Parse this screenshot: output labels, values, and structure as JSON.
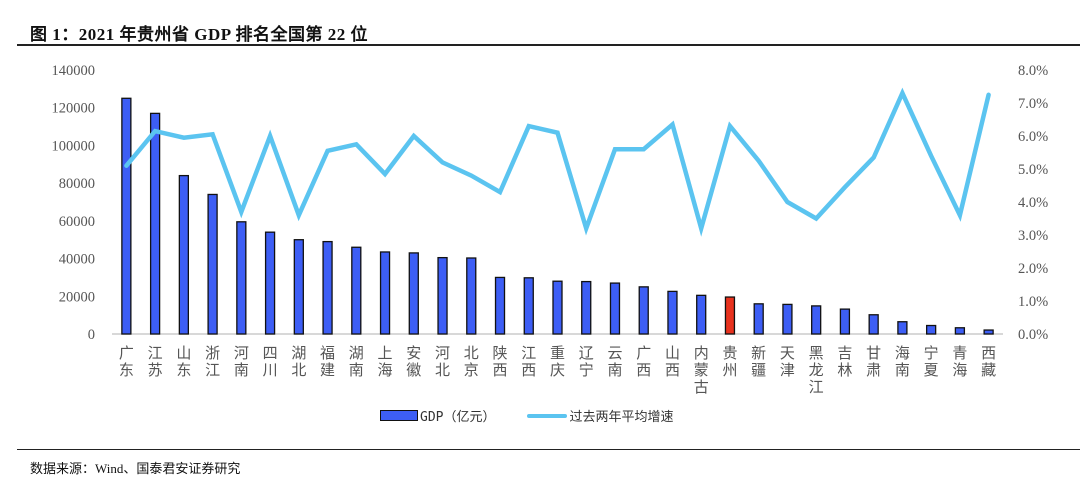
{
  "header": {
    "title": "图 1：2021 年贵州省 GDP 排名全国第 22 位"
  },
  "footer": {
    "source": "数据来源：Wind、国泰君安证券研究"
  },
  "legend": {
    "bar_label": "GDP（亿元）",
    "line_label": "过去两年平均增速"
  },
  "colors": {
    "bar": "#3d5ef5",
    "bar_highlight": "#e8321e",
    "bar_border": "#111111",
    "line": "#5bc4f0",
    "axis_text": "#555555",
    "baseline": "#cccccc"
  },
  "chart_data": {
    "type": "bar+line",
    "title": "图 1：2021 年贵州省 GDP 排名全国第 22 位",
    "xlabel": "",
    "ylabel": "",
    "y2label": "",
    "ylim": [
      0,
      140000
    ],
    "y2lim": [
      0,
      0.08
    ],
    "yticks": [
      "0",
      "20000",
      "40000",
      "60000",
      "80000",
      "100000",
      "120000",
      "140000"
    ],
    "y2ticks": [
      "0.0%",
      "1.0%",
      "2.0%",
      "3.0%",
      "4.0%",
      "5.0%",
      "6.0%",
      "7.0%",
      "8.0%"
    ],
    "grid": false,
    "legend_position": "bottom",
    "highlight_category": "贵州",
    "categories": [
      "广东",
      "江苏",
      "山东",
      "浙江",
      "河南",
      "四川",
      "湖北",
      "福建",
      "湖南",
      "上海",
      "安徽",
      "河北",
      "北京",
      "陕西",
      "江西",
      "重庆",
      "辽宁",
      "云南",
      "广西",
      "山西",
      "内蒙古",
      "贵州",
      "新疆",
      "天津",
      "黑龙江",
      "吉林",
      "甘肃",
      "海南",
      "宁夏",
      "青海",
      "西藏"
    ],
    "series": [
      {
        "name": "GDP（亿元）",
        "type": "bar",
        "axis": "left",
        "values": [
          125000,
          117000,
          84000,
          74000,
          59500,
          54000,
          50000,
          49000,
          46000,
          43500,
          43000,
          40500,
          40300,
          30000,
          29800,
          28000,
          27800,
          27000,
          25000,
          22600,
          20500,
          19600,
          16000,
          15700,
          14900,
          13200,
          10200,
          6500,
          4500,
          3300,
          2100
        ]
      },
      {
        "name": "过去两年平均增速",
        "type": "line",
        "axis": "right",
        "values": [
          0.051,
          0.0615,
          0.0595,
          0.0605,
          0.037,
          0.06,
          0.036,
          0.0555,
          0.0575,
          0.0485,
          0.06,
          0.052,
          0.048,
          0.043,
          0.063,
          0.061,
          0.032,
          0.056,
          0.056,
          0.0635,
          0.032,
          0.063,
          0.0525,
          0.04,
          0.035,
          0.0445,
          0.0535,
          0.073,
          0.054,
          0.036,
          0.0725
        ]
      }
    ]
  }
}
